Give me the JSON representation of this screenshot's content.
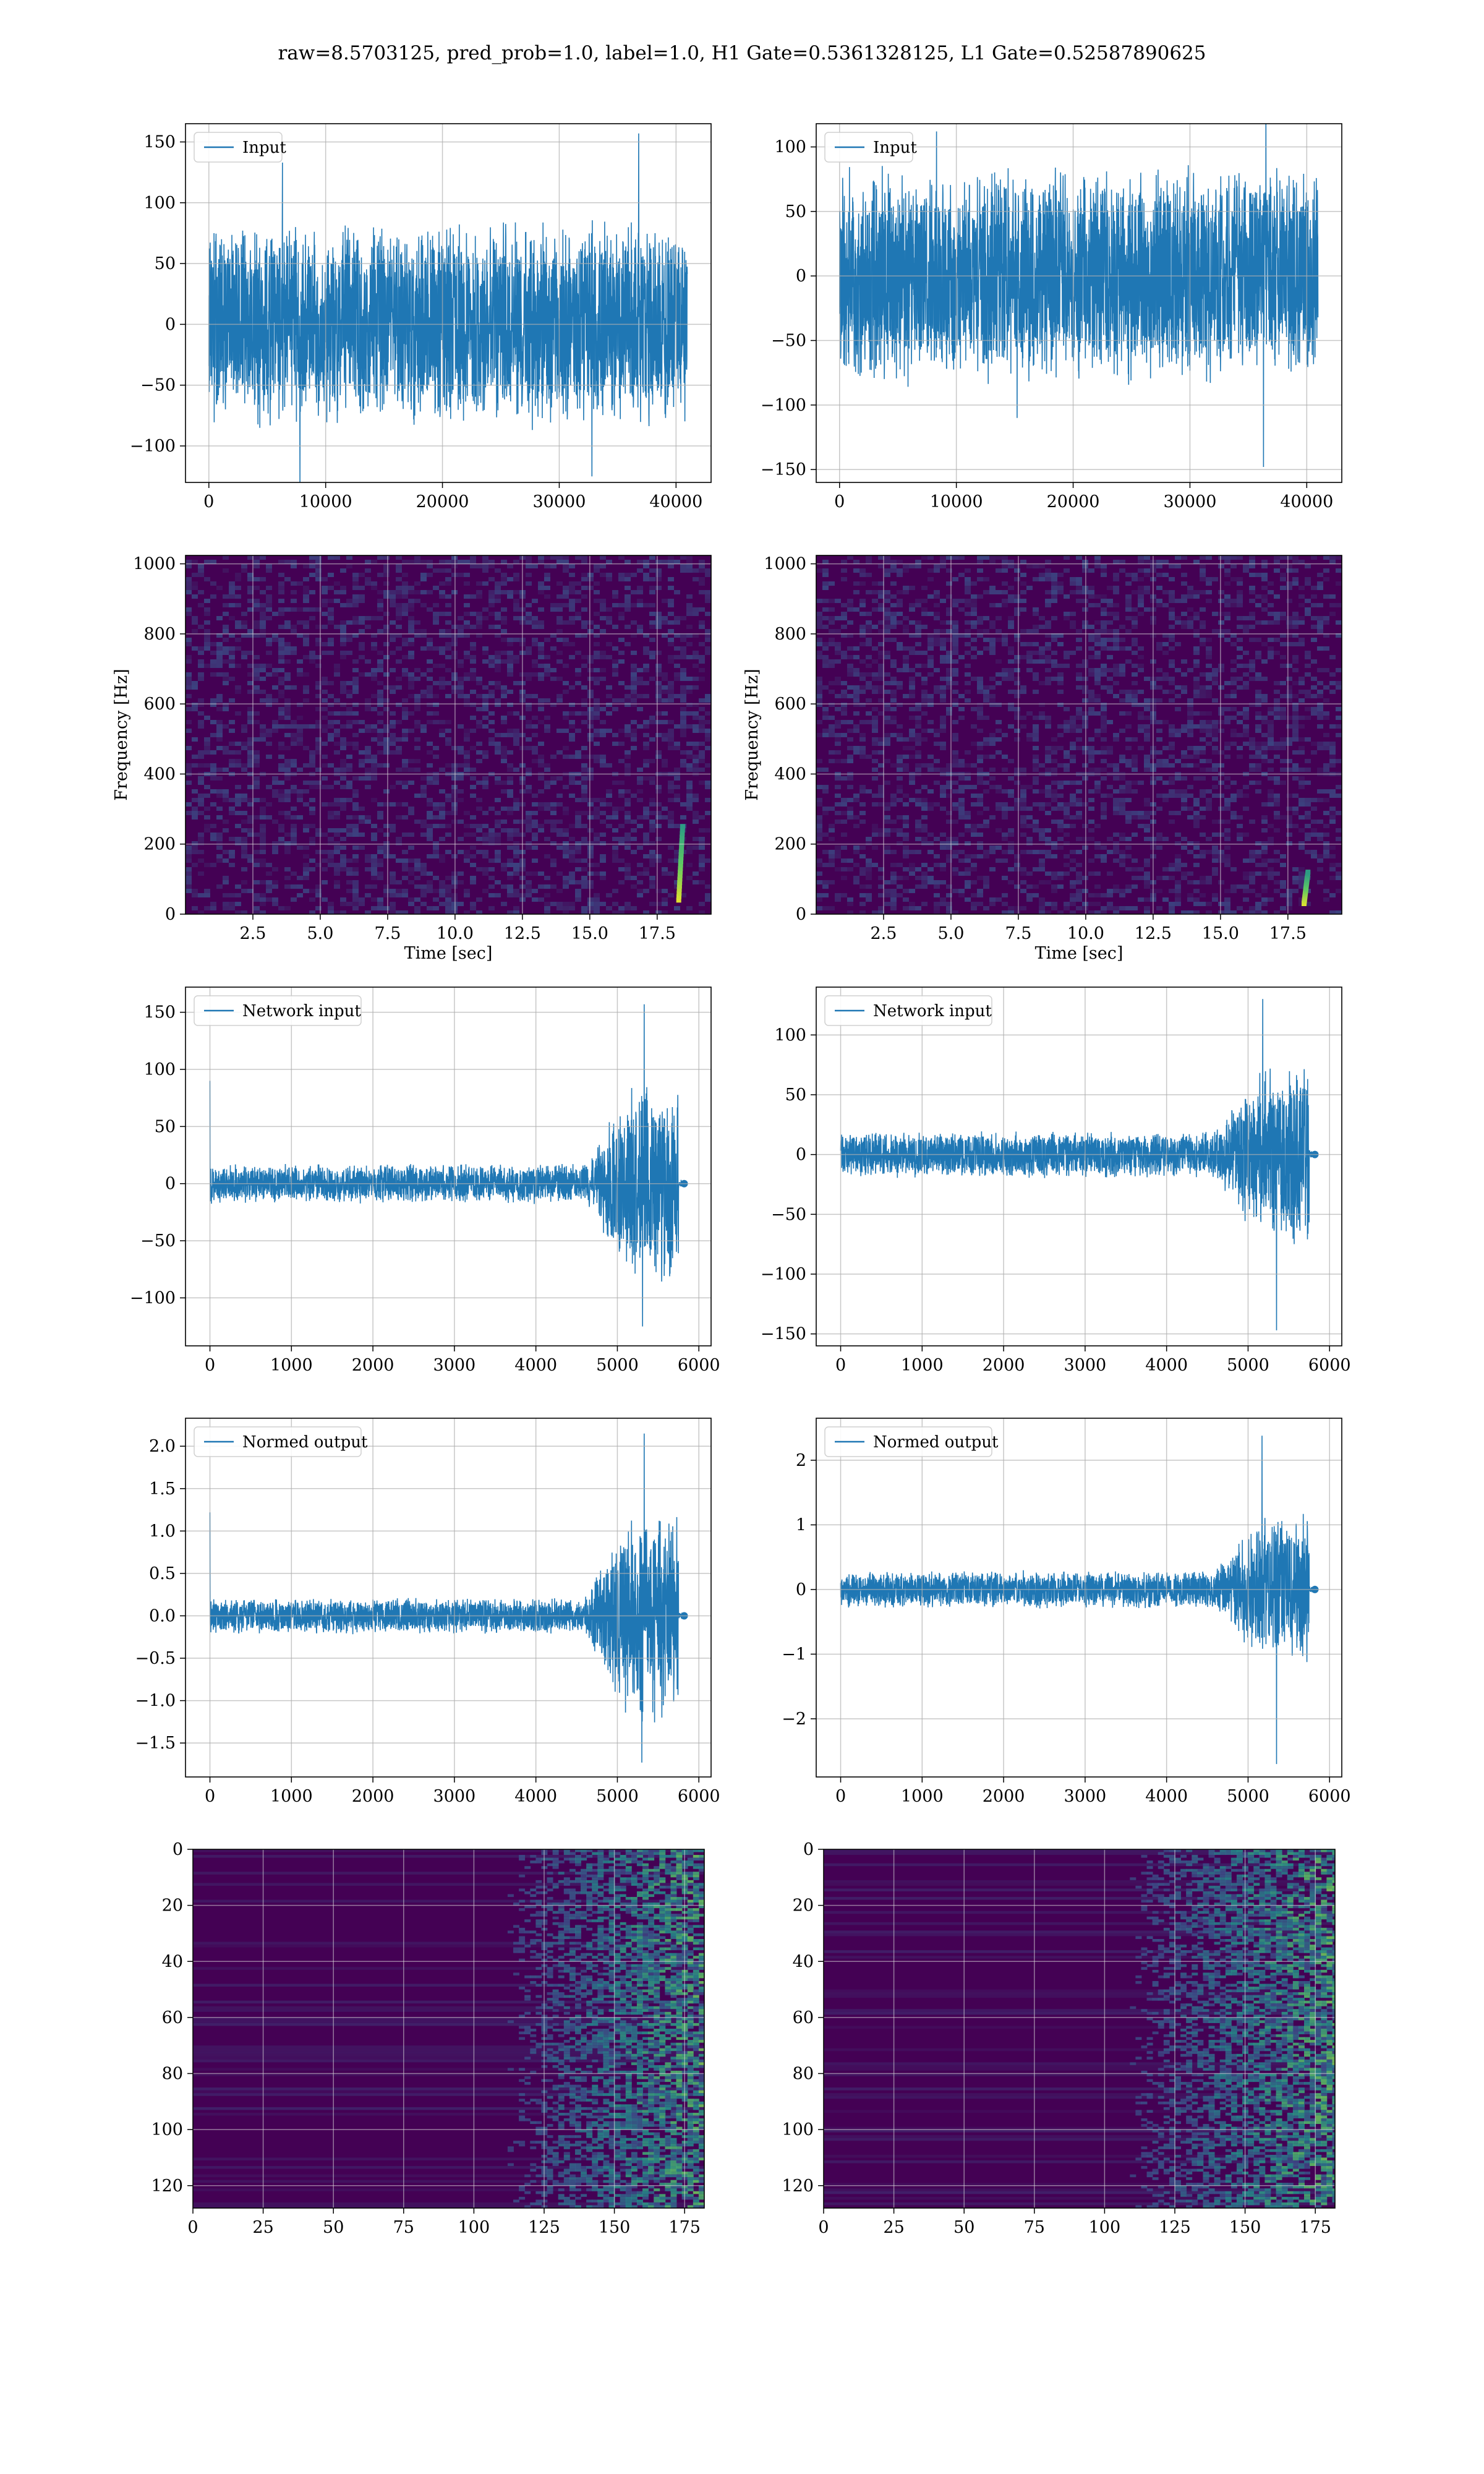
{
  "title": "raw=8.5703125, pred_prob=1.0, label=1.0, H1 Gate=0.5361328125, L1 Gate=0.52587890625",
  "colors": {
    "line": "#1f77b4",
    "grid": "#b0b0b0",
    "viridis_dark": "#440154",
    "viridis_mid": "#21918c",
    "viridis_bright": "#fde725"
  },
  "chart_data": [
    {
      "id": "h1-input",
      "type": "line",
      "legend": "Input",
      "legend_position": "upper-left",
      "xlim": [
        -2000,
        43000
      ],
      "ylim": [
        -130,
        165
      ],
      "xticks": [
        0,
        10000,
        20000,
        30000,
        40000
      ],
      "xtick_labels": [
        "0",
        "10000",
        "20000",
        "30000",
        "40000"
      ],
      "yticks": [
        -100,
        -50,
        0,
        50,
        100,
        150
      ],
      "ytick_labels": [
        "−100",
        "−50",
        "0",
        "50",
        "100",
        "150"
      ],
      "signal": {
        "x_range": [
          0,
          40960
        ],
        "shape": "noise",
        "band": [
          -85,
          90
        ],
        "peaks": [
          [
            36800,
            157
          ],
          [
            6300,
            133
          ],
          [
            7800,
            -130
          ],
          [
            32800,
            -125
          ]
        ]
      },
      "xlabel": "",
      "ylabel": ""
    },
    {
      "id": "l1-input",
      "type": "line",
      "legend": "Input",
      "legend_position": "upper-left",
      "xlim": [
        -2000,
        43000
      ],
      "ylim": [
        -160,
        118
      ],
      "xticks": [
        0,
        10000,
        20000,
        30000,
        40000
      ],
      "xtick_labels": [
        "0",
        "10000",
        "20000",
        "30000",
        "40000"
      ],
      "yticks": [
        -150,
        -100,
        -50,
        0,
        50,
        100
      ],
      "ytick_labels": [
        "−150",
        "−100",
        "−50",
        "0",
        "50",
        "100"
      ],
      "signal": {
        "x_range": [
          0,
          40960
        ],
        "shape": "noise",
        "band": [
          -85,
          90
        ],
        "peaks": [
          [
            36500,
            128
          ],
          [
            36300,
            -148
          ],
          [
            8300,
            112
          ],
          [
            15200,
            -110
          ]
        ]
      },
      "xlabel": "",
      "ylabel": ""
    },
    {
      "id": "h1-spectrogram",
      "type": "heatmap",
      "legend": "",
      "xlim": [
        0,
        19.5
      ],
      "ylim": [
        0,
        1024
      ],
      "xticks": [
        2.5,
        5.0,
        7.5,
        10.0,
        12.5,
        15.0,
        17.5
      ],
      "xtick_labels": [
        "2.5",
        "5.0",
        "7.5",
        "10.0",
        "12.5",
        "15.0",
        "17.5"
      ],
      "yticks": [
        0,
        200,
        400,
        600,
        800,
        1000
      ],
      "ytick_labels": [
        "0",
        "200",
        "400",
        "600",
        "800",
        "1000"
      ],
      "xlabel": "Time [sec]",
      "ylabel": "Frequency [Hz]",
      "hotspot": {
        "x": 18.3,
        "y_range": [
          40,
          250
        ]
      }
    },
    {
      "id": "l1-spectrogram",
      "type": "heatmap",
      "legend": "",
      "xlim": [
        0,
        19.5
      ],
      "ylim": [
        0,
        1024
      ],
      "xticks": [
        2.5,
        5.0,
        7.5,
        10.0,
        12.5,
        15.0,
        17.5
      ],
      "xtick_labels": [
        "2.5",
        "5.0",
        "7.5",
        "10.0",
        "12.5",
        "15.0",
        "17.5"
      ],
      "yticks": [
        0,
        200,
        400,
        600,
        800,
        1000
      ],
      "ytick_labels": [
        "0",
        "200",
        "400",
        "600",
        "800",
        "1000"
      ],
      "xlabel": "Time [sec]",
      "ylabel": "Frequency [Hz]",
      "hotspot": {
        "x": 18.1,
        "y_range": [
          30,
          120
        ]
      }
    },
    {
      "id": "h1-network-input",
      "type": "line",
      "legend": "Network input",
      "legend_position": "upper-left",
      "xlim": [
        -300,
        6150
      ],
      "ylim": [
        -142,
        172
      ],
      "xticks": [
        0,
        1000,
        2000,
        3000,
        4000,
        5000,
        6000
      ],
      "xtick_labels": [
        "0",
        "1000",
        "2000",
        "3000",
        "4000",
        "5000",
        "6000"
      ],
      "yticks": [
        -100,
        -50,
        0,
        50,
        100,
        150
      ],
      "ytick_labels": [
        "−100",
        "−50",
        "0",
        "50",
        "100",
        "150"
      ],
      "signal": {
        "x_range": [
          0,
          5800
        ],
        "shape": "chirp",
        "base_amp": 18,
        "burst_start": 4600,
        "burst_end": 5750,
        "burst_amp": 95,
        "spike_start": 90,
        "peaks": [
          [
            5330,
            157
          ],
          [
            5310,
            -125
          ]
        ],
        "tail_marker": 5820
      },
      "xlabel": "",
      "ylabel": ""
    },
    {
      "id": "l1-network-input",
      "type": "line",
      "legend": "Network input",
      "legend_position": "upper-left",
      "xlim": [
        -300,
        6150
      ],
      "ylim": [
        -160,
        140
      ],
      "xticks": [
        0,
        1000,
        2000,
        3000,
        4000,
        5000,
        6000
      ],
      "xtick_labels": [
        "0",
        "1000",
        "2000",
        "3000",
        "4000",
        "5000",
        "6000"
      ],
      "yticks": [
        -150,
        -100,
        -50,
        0,
        50,
        100
      ],
      "ytick_labels": [
        "−150",
        "−100",
        "−50",
        "0",
        "50",
        "100"
      ],
      "signal": {
        "x_range": [
          0,
          5800
        ],
        "shape": "chirp",
        "base_amp": 20,
        "burst_start": 4600,
        "burst_end": 5750,
        "burst_amp": 80,
        "spike_start": 0,
        "peaks": [
          [
            5180,
            130
          ],
          [
            5350,
            -147
          ]
        ],
        "tail_marker": 5820
      },
      "xlabel": "",
      "ylabel": ""
    },
    {
      "id": "h1-normed-output",
      "type": "line",
      "legend": "Normed output",
      "legend_position": "upper-left",
      "xlim": [
        -300,
        6150
      ],
      "ylim": [
        -1.9,
        2.33
      ],
      "xticks": [
        0,
        1000,
        2000,
        3000,
        4000,
        5000,
        6000
      ],
      "xtick_labels": [
        "0",
        "1000",
        "2000",
        "3000",
        "4000",
        "5000",
        "6000"
      ],
      "yticks": [
        -1.5,
        -1.0,
        -0.5,
        0.0,
        0.5,
        1.0,
        1.5,
        2.0
      ],
      "ytick_labels": [
        "−1.5",
        "−1.0",
        "−0.5",
        "0.0",
        "0.5",
        "1.0",
        "1.5",
        "2.0"
      ],
      "signal": {
        "x_range": [
          0,
          5800
        ],
        "shape": "chirp",
        "base_amp": 0.22,
        "burst_start": 4600,
        "burst_end": 5750,
        "burst_amp": 1.3,
        "spike_start": 1.22,
        "peaks": [
          [
            5330,
            2.15
          ],
          [
            5300,
            -1.73
          ]
        ],
        "tail_marker": 5820
      },
      "xlabel": "",
      "ylabel": ""
    },
    {
      "id": "l1-normed-output",
      "type": "line",
      "legend": "Normed output",
      "legend_position": "upper-left",
      "xlim": [
        -300,
        6150
      ],
      "ylim": [
        -2.9,
        2.65
      ],
      "xticks": [
        0,
        1000,
        2000,
        3000,
        4000,
        5000,
        6000
      ],
      "xtick_labels": [
        "0",
        "1000",
        "2000",
        "3000",
        "4000",
        "5000",
        "6000"
      ],
      "yticks": [
        -2,
        -1,
        0,
        1,
        2
      ],
      "ytick_labels": [
        "−2",
        "−1",
        "0",
        "1",
        "2"
      ],
      "signal": {
        "x_range": [
          0,
          5800
        ],
        "shape": "chirp",
        "base_amp": 0.3,
        "burst_start": 4600,
        "burst_end": 5750,
        "burst_amp": 1.2,
        "spike_start": 0,
        "peaks": [
          [
            5170,
            2.38
          ],
          [
            5350,
            -2.7
          ]
        ],
        "tail_marker": 5820
      },
      "xlabel": "",
      "ylabel": ""
    },
    {
      "id": "h1-feature-map",
      "type": "heatmap",
      "legend": "",
      "y_inverted": true,
      "xlim": [
        0,
        182
      ],
      "ylim": [
        128,
        0
      ],
      "xticks": [
        0,
        25,
        50,
        75,
        100,
        125,
        150,
        175
      ],
      "xtick_labels": [
        "0",
        "25",
        "50",
        "75",
        "100",
        "125",
        "150",
        "175"
      ],
      "yticks": [
        0,
        20,
        40,
        60,
        80,
        100,
        120
      ],
      "ytick_labels": [
        "0",
        "20",
        "40",
        "60",
        "80",
        "100",
        "120"
      ],
      "activation_start": 125,
      "xlabel": "",
      "ylabel": ""
    },
    {
      "id": "l1-feature-map",
      "type": "heatmap",
      "legend": "",
      "y_inverted": true,
      "xlim": [
        0,
        182
      ],
      "ylim": [
        128,
        0
      ],
      "xticks": [
        0,
        25,
        50,
        75,
        100,
        125,
        150,
        175
      ],
      "xtick_labels": [
        "0",
        "25",
        "50",
        "75",
        "100",
        "125",
        "150",
        "175"
      ],
      "yticks": [
        0,
        20,
        40,
        60,
        80,
        100,
        120
      ],
      "ytick_labels": [
        "0",
        "20",
        "40",
        "60",
        "80",
        "100",
        "120"
      ],
      "activation_start": 122,
      "xlabel": "",
      "ylabel": ""
    }
  ]
}
